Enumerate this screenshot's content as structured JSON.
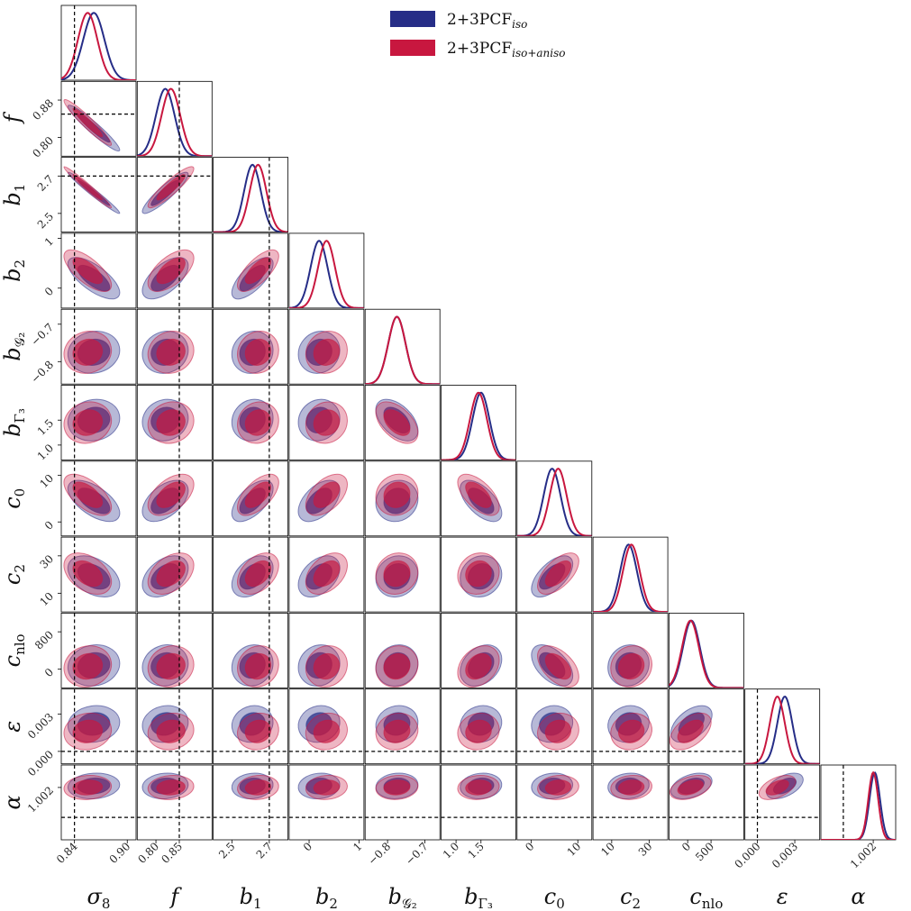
{
  "chart_data": {
    "type": "corner",
    "title": "",
    "legend": {
      "placement": "top-center",
      "entries": [
        {
          "key": "iso",
          "label": "2+3PCF",
          "sub": "iso",
          "color": "#262d87"
        },
        {
          "key": "aniso",
          "label": "2+3PCF",
          "sub": "iso+aniso",
          "color": "#c8173f"
        }
      ]
    },
    "truth_lines": {
      "sigma8": 0.84,
      "f": 0.85,
      "b1": 2.7,
      "eps": 0.0,
      "alpha": 1.0
    },
    "params": [
      {
        "key": "sigma8",
        "label": "σ",
        "sub": "8",
        "ylabel_show": false,
        "range": [
          0.825,
          0.91
        ],
        "ticks": [
          0.84,
          0.9
        ],
        "tick_labels": [
          "0.84",
          "0.90"
        ],
        "mean": {
          "iso": 0.862,
          "aniso": 0.855
        },
        "sd": {
          "iso": 0.012,
          "aniso": 0.011
        }
      },
      {
        "key": "f",
        "label": "f",
        "sub": "",
        "range": [
          0.76,
          0.92
        ],
        "ticks": [
          0.8,
          0.85
        ],
        "ytick_labels": [
          "0.80",
          "0.88"
        ],
        "yticks": [
          0.8,
          0.88
        ],
        "tick_labels": [
          "0.80",
          "0.85"
        ],
        "mean": {
          "iso": 0.82,
          "aniso": 0.832
        },
        "sd": {
          "iso": 0.02,
          "aniso": 0.02
        }
      },
      {
        "key": "b1",
        "label": "b",
        "sub": "1",
        "range": [
          2.4,
          2.8
        ],
        "ticks": [
          2.5,
          2.7
        ],
        "tick_labels": [
          "2.5",
          "2.7"
        ],
        "mean": {
          "iso": 2.61,
          "aniso": 2.64
        },
        "sd": {
          "iso": 0.045,
          "aniso": 0.045
        }
      },
      {
        "key": "b2",
        "label": "b",
        "sub": "2",
        "range": [
          -0.4,
          1.1
        ],
        "ticks": [
          0,
          1
        ],
        "tick_labels": [
          "0",
          "1"
        ],
        "mean": {
          "iso": 0.2,
          "aniso": 0.35
        },
        "sd": {
          "iso": 0.17,
          "aniso": 0.17
        }
      },
      {
        "key": "bG2",
        "label": "b",
        "sub": "𝒢₂",
        "range": [
          -0.86,
          -0.66
        ],
        "ticks": [
          -0.8,
          -0.7
        ],
        "tick_labels": [
          "−0.8",
          "−0.7"
        ],
        "mean": {
          "iso": -0.775,
          "aniso": -0.775
        },
        "sd": {
          "iso": 0.023,
          "aniso": 0.023
        }
      },
      {
        "key": "bG3",
        "label": "b",
        "sub": "Γ₃",
        "range": [
          0.7,
          2.2
        ],
        "ticks": [
          1.0,
          1.5
        ],
        "tick_labels": [
          "1.0",
          "1.5"
        ],
        "mean": {
          "iso": 1.5,
          "aniso": 1.45
        },
        "sd": {
          "iso": 0.17,
          "aniso": 0.17
        }
      },
      {
        "key": "c0",
        "label": "c",
        "sub": "0",
        "range": [
          -3,
          13
        ],
        "ticks": [
          0,
          10
        ],
        "tick_labels": [
          "0",
          "10"
        ],
        "mean": {
          "iso": 4.5,
          "aniso": 5.8
        },
        "sd": {
          "iso": 1.8,
          "aniso": 1.8
        }
      },
      {
        "key": "c2",
        "label": "c",
        "sub": "2",
        "range": [
          0,
          40
        ],
        "ticks": [
          10,
          30
        ],
        "tick_labels": [
          "10",
          "30"
        ],
        "mean": {
          "iso": 19,
          "aniso": 20.5
        },
        "sd": {
          "iso": 4.5,
          "aniso": 4.5
        }
      },
      {
        "key": "cnlo",
        "label": "c",
        "sub": "nlo",
        "range": [
          -400,
          1200
        ],
        "ticks": [
          0,
          800
        ],
        "tick_labels": [
          "0",
          "800"
        ],
        "xtick_labels": [
          "0",
          "500"
        ],
        "xticks": [
          0,
          500
        ],
        "mean": {
          "iso": 80,
          "aniso": 60
        },
        "sd": {
          "iso": 180,
          "aniso": 180
        }
      },
      {
        "key": "eps",
        "label": "ε",
        "sub": "",
        "range": [
          -0.001,
          0.005
        ],
        "ticks": [
          0.0,
          0.003
        ],
        "tick_labels": [
          "0.000",
          "0.003"
        ],
        "mean": {
          "iso": 0.0022,
          "aniso": 0.0016
        },
        "sd": {
          "iso": 0.0006,
          "aniso": 0.0006
        }
      },
      {
        "key": "alpha",
        "label": "α",
        "sub": "",
        "range": [
          0.9985,
          1.0035
        ],
        "ticks": [
          1.002
        ],
        "tick_labels": [
          "1.002"
        ],
        "mean": {
          "iso": 1.0021,
          "aniso": 1.002
        },
        "sd": {
          "iso": 0.00035,
          "aniso": 0.00033
        }
      }
    ]
  }
}
